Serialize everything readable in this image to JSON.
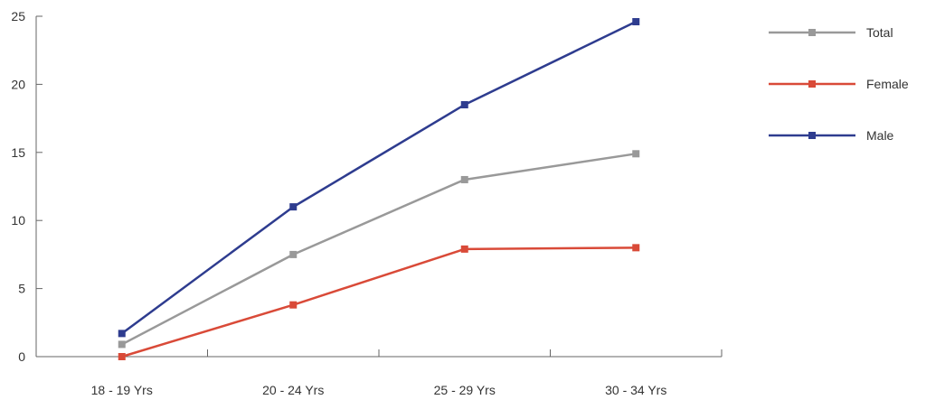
{
  "chart_data": {
    "type": "line",
    "title": "",
    "xlabel": "",
    "ylabel": "",
    "categories": [
      "18 - 19 Yrs",
      "20 - 24 Yrs",
      "25 - 29 Yrs",
      "30 - 34 Yrs"
    ],
    "ylim": [
      0,
      25
    ],
    "yticks": [
      0,
      5,
      10,
      15,
      20,
      25
    ],
    "grid": false,
    "legend_position": "right",
    "series": [
      {
        "name": "Total",
        "color": "#999999",
        "values": [
          0.9,
          7.5,
          13.0,
          14.9
        ]
      },
      {
        "name": "Female",
        "color": "#D94A38",
        "values": [
          0.0,
          3.8,
          7.9,
          8.0
        ]
      },
      {
        "name": "Male",
        "color": "#2E3C8F",
        "values": [
          1.7,
          11.0,
          18.5,
          24.6
        ]
      }
    ]
  }
}
